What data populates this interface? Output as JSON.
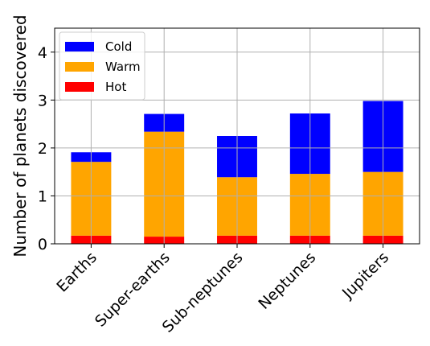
{
  "chart_data": {
    "type": "bar",
    "stacked": true,
    "categories": [
      "Earths",
      "Super-earths",
      "Sub-neptunes",
      "Neptunes",
      "Jupiters"
    ],
    "series": [
      {
        "name": "Hot",
        "color": "#ff0000",
        "values": [
          0.17,
          0.15,
          0.17,
          0.17,
          0.17
        ]
      },
      {
        "name": "Warm",
        "color": "#ffa500",
        "values": [
          1.54,
          2.19,
          1.22,
          1.29,
          1.33
        ]
      },
      {
        "name": "Cold",
        "color": "#0000ff",
        "values": [
          0.2,
          0.37,
          0.86,
          1.26,
          1.48
        ]
      }
    ],
    "ylabel": "Number of planets discovered",
    "xlabel": "",
    "ylim": [
      0,
      4.5
    ],
    "yticks": [
      0,
      1,
      2,
      3,
      4
    ],
    "grid": true,
    "legend": {
      "position": "top-left",
      "order": [
        "Cold",
        "Warm",
        "Hot"
      ]
    }
  }
}
